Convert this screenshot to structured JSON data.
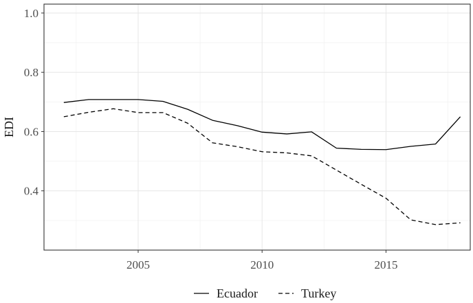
{
  "chart_data": {
    "type": "line",
    "title": "",
    "xlabel": "",
    "ylabel": "EDI",
    "x": [
      2002,
      2003,
      2004,
      2005,
      2006,
      2007,
      2008,
      2009,
      2010,
      2011,
      2012,
      2013,
      2014,
      2015,
      2016,
      2017,
      2018
    ],
    "xlim": [
      2001.2,
      2018.4
    ],
    "ylim": [
      0.2,
      1.03
    ],
    "xticks": [
      "2005",
      "2010",
      "2015"
    ],
    "yticks": [
      "0.4",
      "0.6",
      "0.8",
      "1.0"
    ],
    "grid": true,
    "legend_position": "bottom",
    "series": [
      {
        "name": "Ecuador",
        "linestyle": "solid",
        "color": "#000000",
        "values": [
          0.698,
          0.708,
          0.708,
          0.708,
          0.702,
          0.675,
          0.638,
          0.62,
          0.598,
          0.592,
          0.599,
          0.544,
          0.54,
          0.539,
          0.55,
          0.558,
          0.65
        ]
      },
      {
        "name": "Turkey",
        "linestyle": "dashed",
        "color": "#000000",
        "values": [
          0.65,
          0.665,
          0.677,
          0.664,
          0.664,
          0.628,
          0.562,
          0.549,
          0.532,
          0.528,
          0.518,
          0.47,
          0.422,
          0.375,
          0.302,
          0.286,
          0.292
        ]
      }
    ]
  }
}
